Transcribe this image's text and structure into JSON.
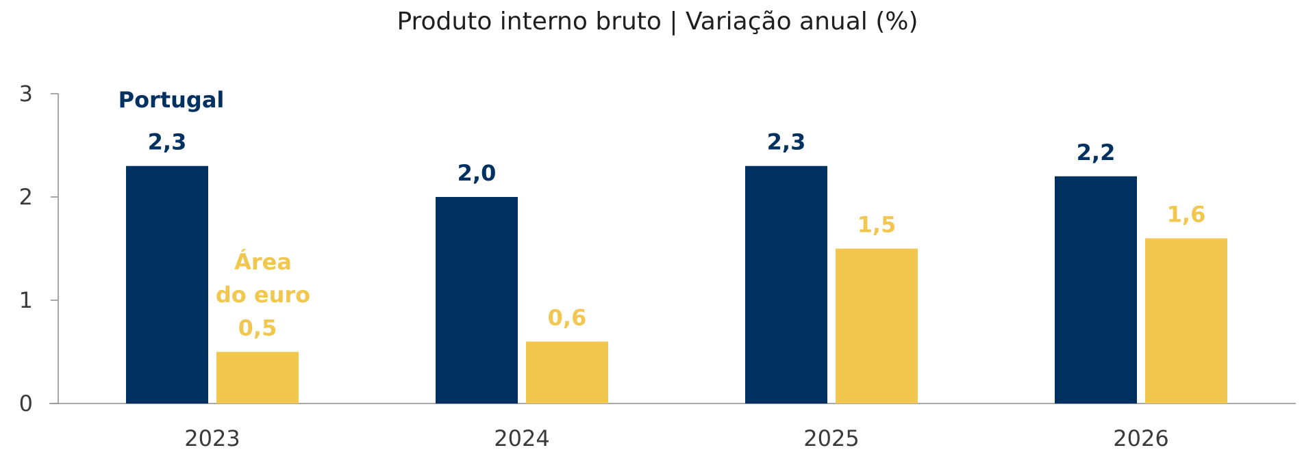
{
  "chart_data": {
    "type": "bar",
    "title": "Produto interno bruto | Variação anual (%)",
    "categories": [
      "2023",
      "2024",
      "2025",
      "2026"
    ],
    "series": [
      {
        "name": "Portugal",
        "values": [
          2.3,
          2.0,
          2.3,
          2.2
        ],
        "labels": [
          "2,3",
          "2,0",
          "2,3",
          "2,2"
        ],
        "color": "#003161"
      },
      {
        "name": "Área do euro",
        "name_lines": [
          "Área",
          "do euro"
        ],
        "values": [
          0.5,
          0.6,
          1.5,
          1.6
        ],
        "labels": [
          "0,5",
          "0,6",
          "1,5",
          "1,6"
        ],
        "color": "#f2c750"
      }
    ],
    "ylim": [
      0,
      3
    ],
    "yticks": [
      0,
      1,
      2,
      3
    ],
    "ytick_labels": [
      "0",
      "1",
      "2",
      "3"
    ],
    "grid": false,
    "legend": "inline labels"
  }
}
